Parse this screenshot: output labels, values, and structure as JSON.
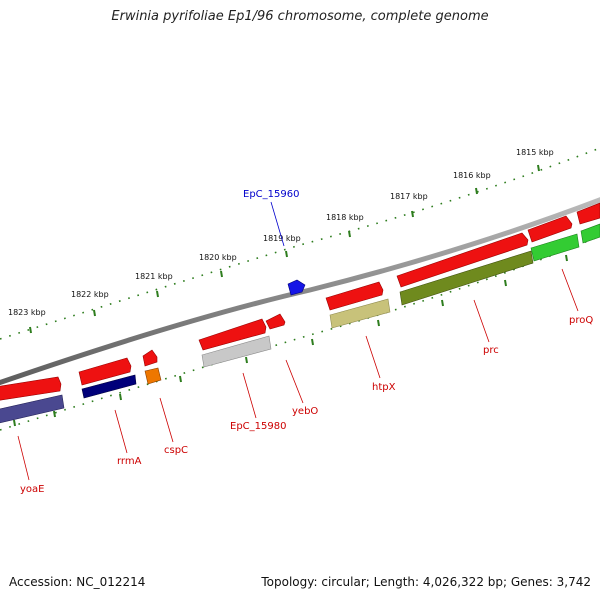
{
  "title": "Erwinia pyrifoliae Ep1/96 chromosome, complete genome",
  "footer": {
    "accession": "Accession: NC_012214",
    "summary": "Topology: circular; Length: 4,026,322 bp; Genes: 3,742"
  },
  "tick_labels": [
    {
      "text": "1823 kbp",
      "kbp": 1823
    },
    {
      "text": "1822 kbp",
      "kbp": 1822
    },
    {
      "text": "1821 kbp",
      "kbp": 1821
    },
    {
      "text": "1820 kbp",
      "kbp": 1820
    },
    {
      "text": "1819 kbp",
      "kbp": 1819
    },
    {
      "text": "1818 kbp",
      "kbp": 1818
    },
    {
      "text": "1817 kbp",
      "kbp": 1817
    },
    {
      "text": "1816 kbp",
      "kbp": 1816
    },
    {
      "text": "1815 kbp",
      "kbp": 1815
    }
  ],
  "colors": {
    "backbone": "#888888",
    "tick": "#2e7d1e",
    "label_red": "#cc0000",
    "label_blue": "#0000cc",
    "cds_red": "#ee1111",
    "navy": "#00007a",
    "orange": "#ee7700",
    "gray": "#c8c8c8",
    "slate": "#4a4890",
    "olive": "#6f8a1e",
    "khaki": "#c8c27a",
    "green": "#33cc33",
    "blue": "#1515e6"
  },
  "genes": [
    {
      "name": "yoaE",
      "label_color": "#cc0000"
    },
    {
      "name": "rrmA",
      "label_color": "#cc0000"
    },
    {
      "name": "cspC",
      "label_color": "#cc0000"
    },
    {
      "name": "EpC_15980",
      "label_color": "#cc0000"
    },
    {
      "name": "yebO",
      "label_color": "#cc0000"
    },
    {
      "name": "htpX",
      "label_color": "#cc0000"
    },
    {
      "name": "prc",
      "label_color": "#cc0000"
    },
    {
      "name": "proQ",
      "label_color": "#cc0000"
    },
    {
      "name": "EpC_15960",
      "label_color": "#0000cc"
    }
  ]
}
